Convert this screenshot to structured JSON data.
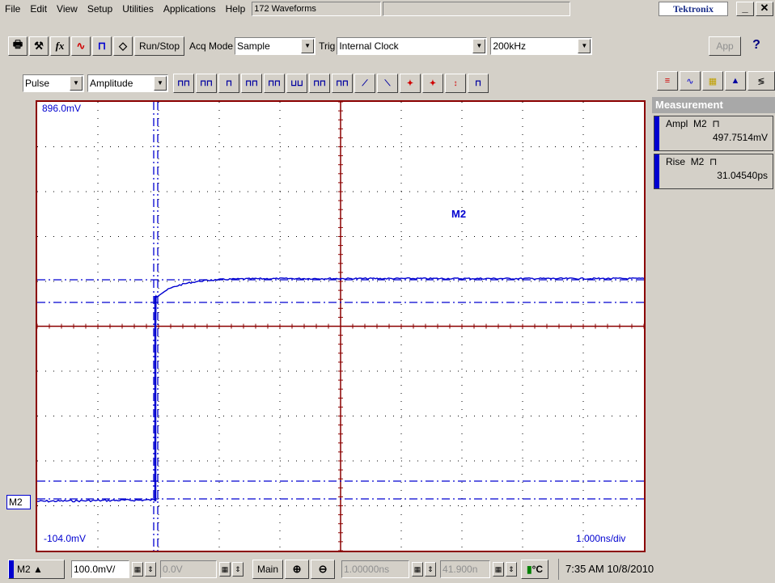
{
  "menu": {
    "items": [
      "File",
      "Edit",
      "View",
      "Setup",
      "Utilities",
      "Applications",
      "Help"
    ],
    "waveform_count": "172 Waveforms",
    "brand": "Tektronix"
  },
  "toolbar": {
    "run_stop": "Run/Stop",
    "acq_mode_label": "Acq Mode",
    "acq_mode_value": "Sample",
    "trig_label": "Trig",
    "trig_value": "Internal Clock",
    "freq_value": "200kHz",
    "app_label": "App"
  },
  "meas_toolbar": {
    "category": "Pulse",
    "type": "Amplitude"
  },
  "plot": {
    "top_label": "896.0mV",
    "bottom_label": "-104.0mV",
    "timebase_label": "1.000ns/div",
    "marker_label": "M2",
    "channel_marker": "M2",
    "trace_color": "#0000d0",
    "grid_color": "#8b0000"
  },
  "measurements": {
    "title": "Measurement",
    "items": [
      {
        "name": "Ampl",
        "source": "M2",
        "value": "497.7514mV"
      },
      {
        "name": "Rise",
        "source": "M2",
        "value": "31.04540ps"
      }
    ]
  },
  "bottom": {
    "channel": "M2",
    "scale": "100.0mV/",
    "offset": "0.0V",
    "main_label": "Main",
    "time_pos": "1.00000ns",
    "delay": "41.900n",
    "temp": "°C",
    "clock": "7:35 AM 10/8/2010"
  }
}
